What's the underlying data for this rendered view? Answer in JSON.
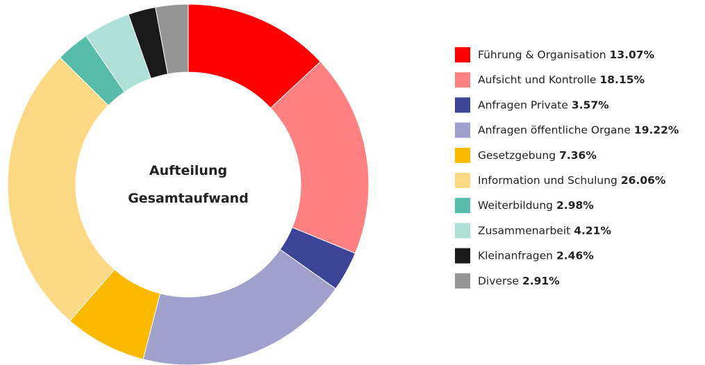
{
  "chart_data": {
    "type": "donut",
    "title": "Aufteilung Gesamtaufwand",
    "categories": [
      "Führung & Organisation",
      "Aufsicht und Kontrolle",
      "Anfragen Private",
      "Anfragen öffentliche Organe",
      "Gesetzgebung",
      "Information und Schulung",
      "Weiterbildung",
      "Zusammenarbeit",
      "Kleinanfragen",
      "Diverse"
    ],
    "values": [
      13.07,
      18.15,
      3.57,
      19.22,
      7.36,
      26.06,
      2.98,
      4.21,
      2.46,
      2.91
    ],
    "value_labels": [
      "13.07%",
      "18.15%",
      "3.57%",
      "19.22%",
      "7.36%",
      "26.06%",
      "2.98%",
      "4.21%",
      "2.46%",
      "2.91%"
    ],
    "colors": [
      "#ff0000",
      "#ff8080",
      "#3b4496",
      "#a0a0cc",
      "#fbb900",
      "#fdd985",
      "#57bcaa",
      "#aee0d8",
      "#1a1a1a",
      "#959595"
    ],
    "legend": "right"
  }
}
